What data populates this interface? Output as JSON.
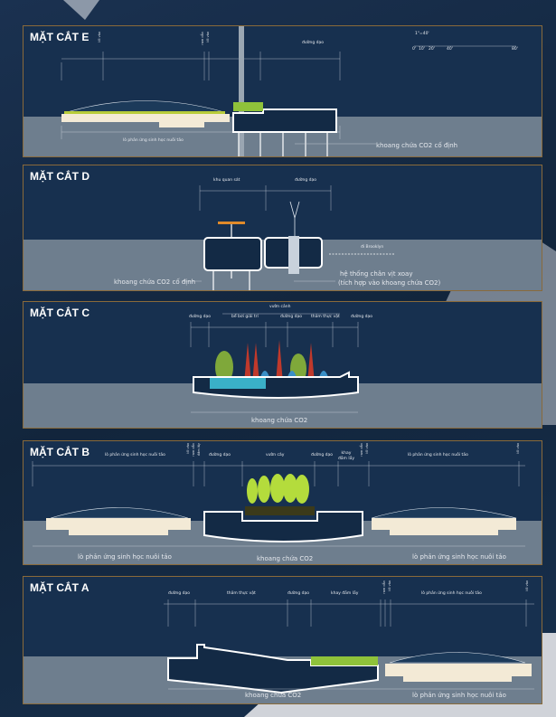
{
  "colors": {
    "background": "#142740",
    "panel": "#17304f",
    "water": "#6e7e8e",
    "border": "#8a6a3a",
    "tank": "#132a45",
    "vegetation": "#9ccc3a",
    "accent_orange": "#e08a2a"
  },
  "sections": {
    "e": {
      "title": "MẶT CẮT E",
      "top_labels": {
        "entry": "lối vào",
        "ramp": "ram dẫn",
        "entry2": "lối vào",
        "walkway": "đường dạo"
      },
      "scale": {
        "ratio": "1\"=40'",
        "ticks": [
          "0'",
          "10'",
          "20'",
          "40'",
          "80'"
        ]
      },
      "bottom_labels": {
        "reactor": "lò phản ứng sinh học nuôi tảo",
        "fixed_tank": "khoang chứa CO2 cố định"
      }
    },
    "d": {
      "title": "MẶT CẮT D",
      "top_labels": {
        "observation": "khu quan sát",
        "walkway": "đường dạo"
      },
      "annotations": {
        "to_brooklyn": "đi Brooklyn",
        "fixed_tank": "khoang chứa CO2 cố định",
        "propeller_line1": "hệ thống chân vịt xoay",
        "propeller_line2": "(tích hợp vào khoang chứa CO2)"
      }
    },
    "c": {
      "title": "MẶT CẮT C",
      "top_labels": {
        "garden": "vườn cảnh",
        "walkway1": "đường dạo",
        "pool": "bể bơi giải trí",
        "walkway2": "đường dạo",
        "vegetation": "thảm thực vật",
        "walkway3": "đường dạo"
      },
      "bottom_labels": {
        "tank": "khoang chứa CO2"
      }
    },
    "b": {
      "title": "MẶT CẮT B",
      "top_labels": {
        "reactor_left": "lò phản ứng sinh học nuôi tảo",
        "entry": "lối vào",
        "ramp": "ram dẫn",
        "marsh": "đầm lầy",
        "walkway1": "đường dạo",
        "orchard": "vườn cây",
        "walkway2": "đường dạo",
        "marsh_tray": "khay đầm lầy",
        "ramp2": "ram dẫn",
        "entry2": "lối vào",
        "reactor_right": "lò phản ứng sinh học nuôi tảo",
        "access": "lối vào"
      },
      "bottom_labels": {
        "reactor_left": "lò phản ứng sinh học nuôi tảo",
        "tank": "khoang chứa CO2",
        "reactor_right": "lò phản ứng sinh học nuôi tảo"
      }
    },
    "a": {
      "title": "MẶT CẮT A",
      "top_labels": {
        "walkway1": "đường dạo",
        "vegetation": "thảm thực vật",
        "walkway2": "đường dạo",
        "marsh_tray": "khay đầm lầy",
        "ramp": "ram dẫn",
        "entry": "lối vào",
        "reactor": "lò phản ứng sinh học nuôi tảo",
        "entry2": "lối vào"
      },
      "bottom_labels": {
        "tank": "khoang chứa CO2",
        "reactor": "lò phản ứng sinh học nuôi tảo"
      }
    }
  }
}
